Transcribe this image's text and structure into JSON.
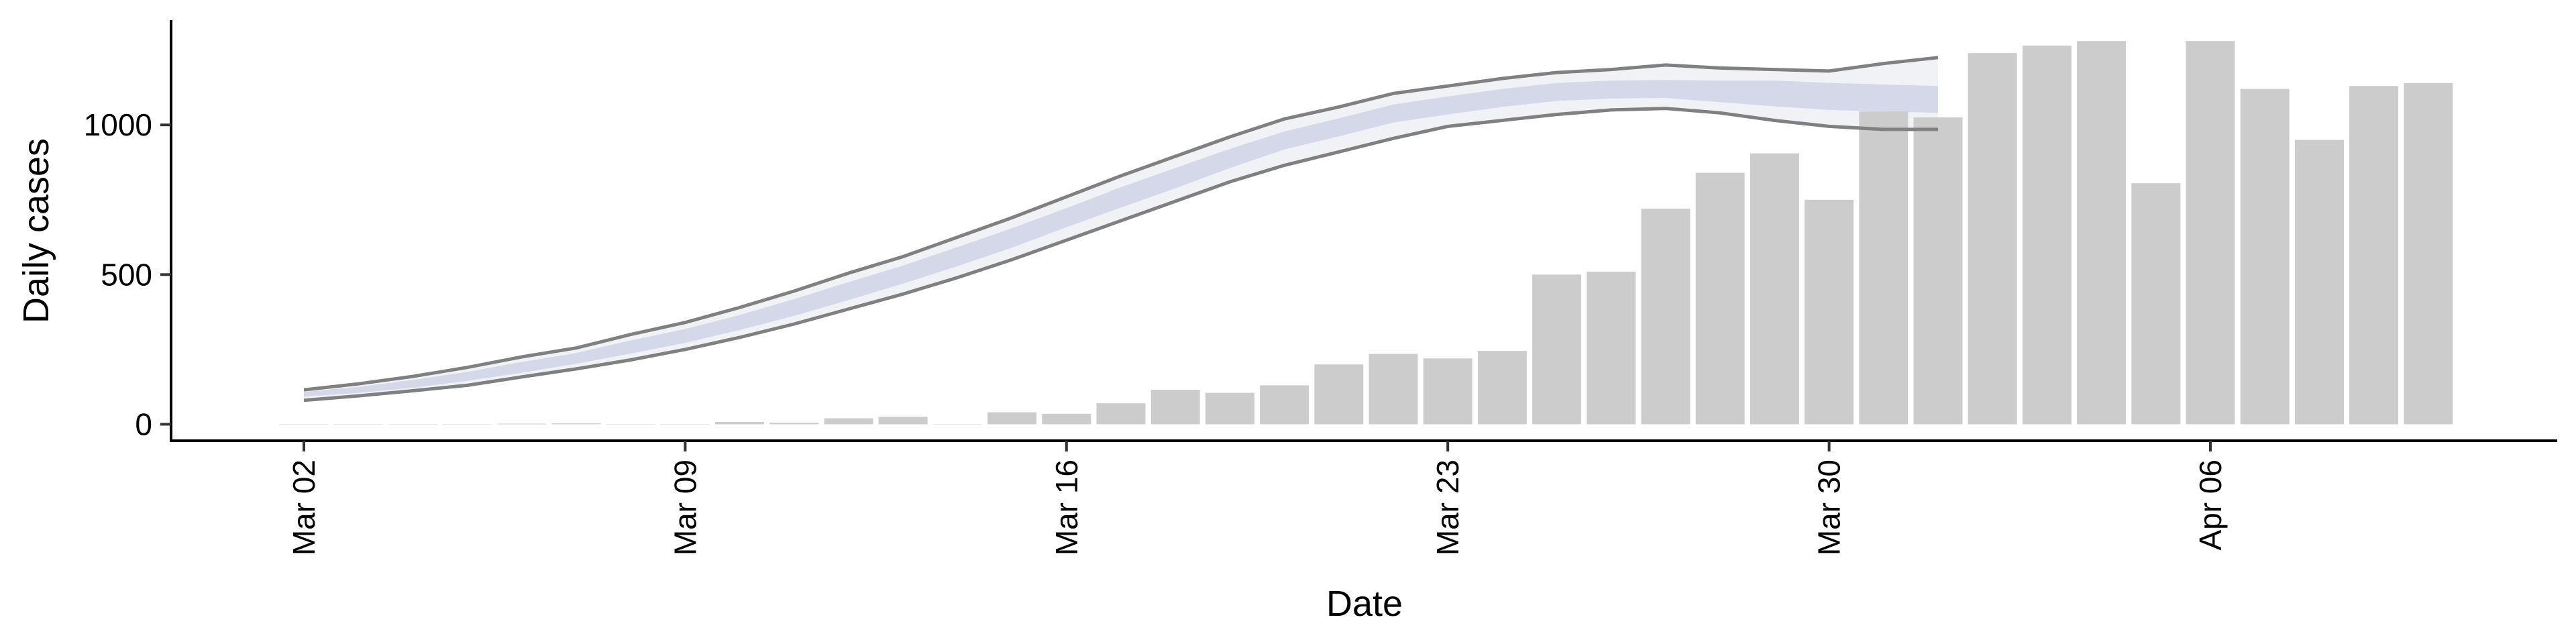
{
  "chart_data": {
    "type": "bar",
    "title": "",
    "xlabel": "Date",
    "ylabel": "Daily cases",
    "ylim": [
      -55,
      1350
    ],
    "grid": false,
    "x_ticks": [
      "Mar 02",
      "Mar 09",
      "Mar 16",
      "Mar 23",
      "Mar 30",
      "Apr 06"
    ],
    "y_ticks": [
      0,
      500,
      1000
    ],
    "dates": [
      "Mar 02",
      "Mar 03",
      "Mar 04",
      "Mar 05",
      "Mar 06",
      "Mar 07",
      "Mar 08",
      "Mar 09",
      "Mar 10",
      "Mar 11",
      "Mar 12",
      "Mar 13",
      "Mar 14",
      "Mar 15",
      "Mar 16",
      "Mar 17",
      "Mar 18",
      "Mar 19",
      "Mar 20",
      "Mar 21",
      "Mar 22",
      "Mar 23",
      "Mar 24",
      "Mar 25",
      "Mar 26",
      "Mar 27",
      "Mar 28",
      "Mar 29",
      "Mar 30",
      "Mar 31",
      "Apr 01",
      "Apr 02",
      "Apr 03",
      "Apr 04",
      "Apr 05",
      "Apr 06",
      "Apr 07",
      "Apr 08",
      "Apr 09",
      "Apr 10"
    ],
    "bars": {
      "values": [
        0,
        0,
        0,
        0,
        2,
        3,
        0,
        0,
        8,
        5,
        20,
        25,
        0,
        40,
        35,
        70,
        115,
        105,
        130,
        200,
        235,
        220,
        245,
        500,
        510,
        720,
        840,
        905,
        750,
        1045,
        1025,
        1240,
        1265,
        1280,
        805,
        1280,
        1120,
        950,
        1130,
        1140
      ],
      "color": "#cccccc"
    },
    "estimate": {
      "dates": [
        "Mar 02",
        "Mar 03",
        "Mar 04",
        "Mar 05",
        "Mar 06",
        "Mar 07",
        "Mar 08",
        "Mar 09",
        "Mar 10",
        "Mar 11",
        "Mar 12",
        "Mar 13",
        "Mar 14",
        "Mar 15",
        "Mar 16",
        "Mar 17",
        "Mar 18",
        "Mar 19",
        "Mar 20",
        "Mar 21",
        "Mar 22",
        "Mar 23",
        "Mar 24",
        "Mar 25",
        "Mar 26",
        "Mar 27",
        "Mar 28",
        "Mar 29",
        "Mar 30",
        "Mar 31",
        "Apr 01"
      ],
      "outer_upper": [
        115,
        135,
        160,
        190,
        225,
        255,
        300,
        340,
        390,
        445,
        505,
        560,
        625,
        690,
        760,
        830,
        895,
        960,
        1020,
        1060,
        1105,
        1130,
        1155,
        1175,
        1185,
        1200,
        1190,
        1185,
        1180,
        1205,
        1225
      ],
      "inner_upper": [
        108,
        125,
        148,
        175,
        208,
        238,
        280,
        318,
        365,
        418,
        475,
        530,
        592,
        655,
        722,
        792,
        856,
        920,
        978,
        1022,
        1068,
        1095,
        1120,
        1140,
        1148,
        1150,
        1148,
        1148,
        1140,
        1135,
        1130
      ],
      "center": [
        100,
        115,
        135,
        160,
        190,
        220,
        258,
        295,
        340,
        390,
        445,
        500,
        560,
        622,
        690,
        758,
        822,
        888,
        948,
        992,
        1038,
        1065,
        1090,
        1110,
        1118,
        1120,
        1112,
        1105,
        1095,
        1090,
        1085
      ],
      "inner_lower": [
        92,
        105,
        122,
        145,
        172,
        202,
        236,
        272,
        315,
        362,
        415,
        470,
        528,
        590,
        658,
        724,
        788,
        856,
        918,
        962,
        1008,
        1035,
        1060,
        1080,
        1088,
        1090,
        1076,
        1062,
        1050,
        1045,
        1040
      ],
      "outer_lower": [
        80,
        95,
        112,
        130,
        158,
        185,
        215,
        250,
        290,
        335,
        385,
        435,
        490,
        550,
        615,
        680,
        745,
        810,
        865,
        910,
        955,
        995,
        1015,
        1035,
        1050,
        1055,
        1040,
        1015,
        995,
        985,
        985
      ],
      "outline_color": "#808080",
      "fill_outer": "#f1f2f6",
      "fill_inner": "#c9cfe3"
    }
  }
}
